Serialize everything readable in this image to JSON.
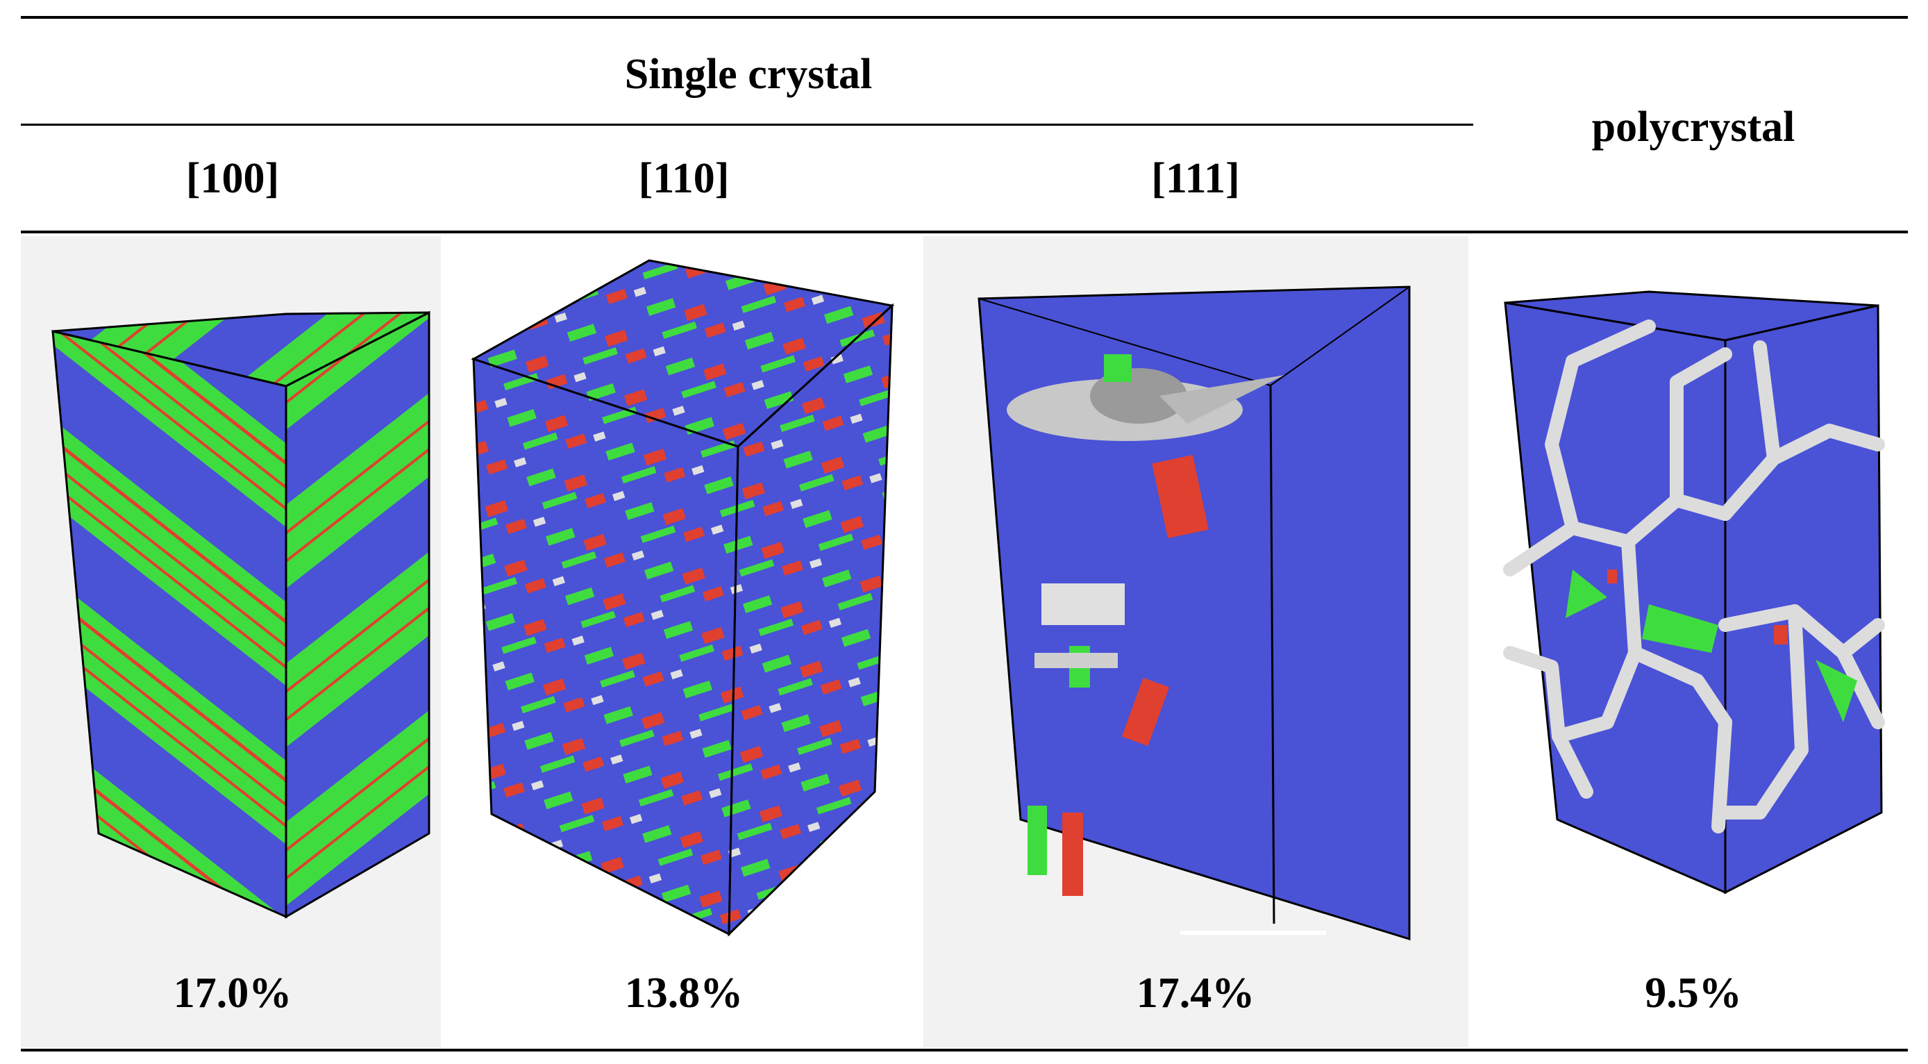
{
  "table": {
    "group_header": "Single crystal",
    "columns": [
      {
        "label": "[100]",
        "value": "17.0%"
      },
      {
        "label": "[110]",
        "value": "13.8%"
      },
      {
        "label": "[111]",
        "value": "17.4%"
      }
    ],
    "polycrystal": {
      "label": "polycrystal",
      "value": "9.5%"
    }
  },
  "colors": {
    "blue": "#4a52d6",
    "green": "#3fdc3f",
    "red": "#e04030",
    "white": "#e0e0e0",
    "shade": "#f2f2f2"
  }
}
